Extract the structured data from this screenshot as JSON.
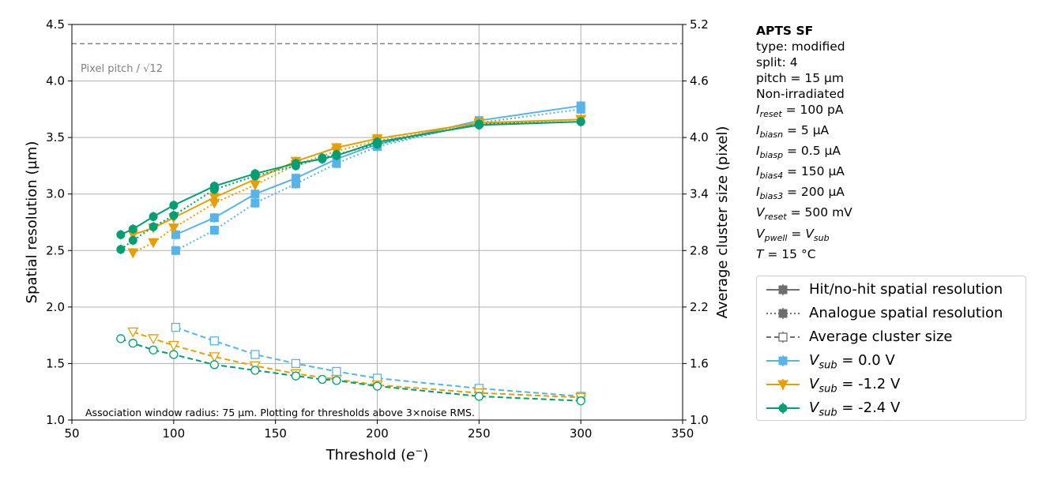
{
  "info_box": {
    "title": "APTS SF",
    "lines": [
      "type: modified",
      "split:  4",
      "pitch = 15 µm",
      "Non-irradiated"
    ],
    "params": [
      {
        "sym": "I",
        "sub": "reset",
        "rest": " = 100 pA"
      },
      {
        "sym": "I",
        "sub": "biasn",
        "rest": " = 5 µA"
      },
      {
        "sym": "I",
        "sub": "biasp",
        "rest": " = 0.5 µA"
      },
      {
        "sym": "I",
        "sub": "bias4",
        "rest": " = 150 µA"
      },
      {
        "sym": "I",
        "sub": "bias3",
        "rest": " = 200 µA"
      },
      {
        "sym": "V",
        "sub": "reset",
        "rest": " = 500 mV"
      },
      {
        "sym": "V",
        "sub": "pwell",
        "rest": " = ",
        "sym2": "V",
        "sub2": "sub"
      },
      {
        "sym": "T",
        "sub": "",
        "rest": " = 15 °C"
      }
    ]
  },
  "legend": {
    "style_items": [
      {
        "label": "Hit/no-hit spatial resolution",
        "color": "#6e6e6e",
        "dash": "",
        "marker": "square-filled"
      },
      {
        "label": "Analogue spatial resolution",
        "color": "#6e6e6e",
        "dash": "2,3",
        "marker": "square-filled"
      },
      {
        "label": "Average cluster size",
        "color": "#6e6e6e",
        "dash": "6,4",
        "marker": "square-open"
      }
    ],
    "series_items": [
      {
        "prefix": "V",
        "sub": "sub",
        "rest": " =  0.0 V",
        "color": "#56b4e9",
        "marker": "square"
      },
      {
        "prefix": "V",
        "sub": "sub",
        "rest": " = -1.2 V",
        "color": "#e69f00",
        "marker": "triangle"
      },
      {
        "prefix": "V",
        "sub": "sub",
        "rest": " = -2.4 V",
        "color": "#009e73",
        "marker": "circle"
      }
    ]
  },
  "chart_data": {
    "type": "line",
    "xlabel": "Threshold (e⁻)",
    "ylabel": "Spatial resolution (µm)",
    "y2label": "Average cluster size (pixel)",
    "xlim": [
      50,
      350
    ],
    "ylim": [
      1.0,
      4.5
    ],
    "y2lim": [
      1.0,
      5.2
    ],
    "xticks": [
      "50",
      "100",
      "150",
      "200",
      "250",
      "300",
      "350"
    ],
    "yticks": [
      "1.0",
      "1.5",
      "2.0",
      "2.5",
      "3.0",
      "3.5",
      "4.0",
      "4.5"
    ],
    "y2ticks": [
      "1.0",
      "1.6",
      "2.2",
      "2.8",
      "3.4",
      "4.0",
      "4.6",
      "5.2"
    ],
    "grid": true,
    "reference_line": {
      "value": 4.33,
      "label": "Pixel pitch / √12",
      "color": "#808080"
    },
    "annotation": "Association window radius: 75 µm. Plotting for thresholds above 3×noise RMS.",
    "series": [
      {
        "name": "V_sub = 0.0 V",
        "color": "#56b4e9",
        "marker": "square",
        "x": [
          101,
          120,
          140,
          160,
          180,
          200,
          250,
          300
        ],
        "hit_nohit": [
          2.64,
          2.79,
          3.0,
          3.14,
          3.31,
          3.44,
          3.65,
          3.78
        ],
        "analogue": [
          2.5,
          2.68,
          2.92,
          3.09,
          3.27,
          3.42,
          3.63,
          3.75
        ],
        "cluster_size": [
          1.82,
          1.7,
          1.58,
          1.5,
          1.43,
          1.37,
          1.28,
          1.21
        ]
      },
      {
        "name": "V_sub = -1.2 V",
        "color": "#e69f00",
        "marker": "triangle",
        "x": [
          80,
          90,
          100,
          120,
          140,
          160,
          180,
          200,
          250,
          300
        ],
        "hit_nohit": [
          2.64,
          2.7,
          2.79,
          2.97,
          3.13,
          3.29,
          3.41,
          3.49,
          3.63,
          3.66
        ],
        "analogue": [
          2.48,
          2.57,
          2.7,
          2.92,
          3.08,
          3.26,
          3.38,
          3.47,
          3.62,
          3.66
        ],
        "cluster_size": [
          1.78,
          1.72,
          1.66,
          1.56,
          1.48,
          1.41,
          1.36,
          1.31,
          1.24,
          1.2
        ]
      },
      {
        "name": "V_sub = -2.4 V",
        "color": "#009e73",
        "marker": "circle",
        "x": [
          74,
          80,
          90,
          100,
          120,
          140,
          160,
          173,
          180,
          200,
          250,
          300
        ],
        "hit_nohit": [
          2.64,
          2.69,
          2.8,
          2.9,
          3.07,
          3.18,
          3.27,
          3.31,
          3.34,
          3.46,
          3.61,
          3.64
        ],
        "analogue": [
          2.51,
          2.59,
          2.71,
          2.81,
          3.04,
          3.16,
          3.25,
          3.32,
          3.35,
          3.44,
          3.62,
          3.64
        ],
        "cluster_size": [
          1.72,
          1.68,
          1.62,
          1.58,
          1.49,
          1.44,
          1.39,
          1.36,
          1.35,
          1.3,
          1.21,
          1.17
        ]
      }
    ]
  }
}
